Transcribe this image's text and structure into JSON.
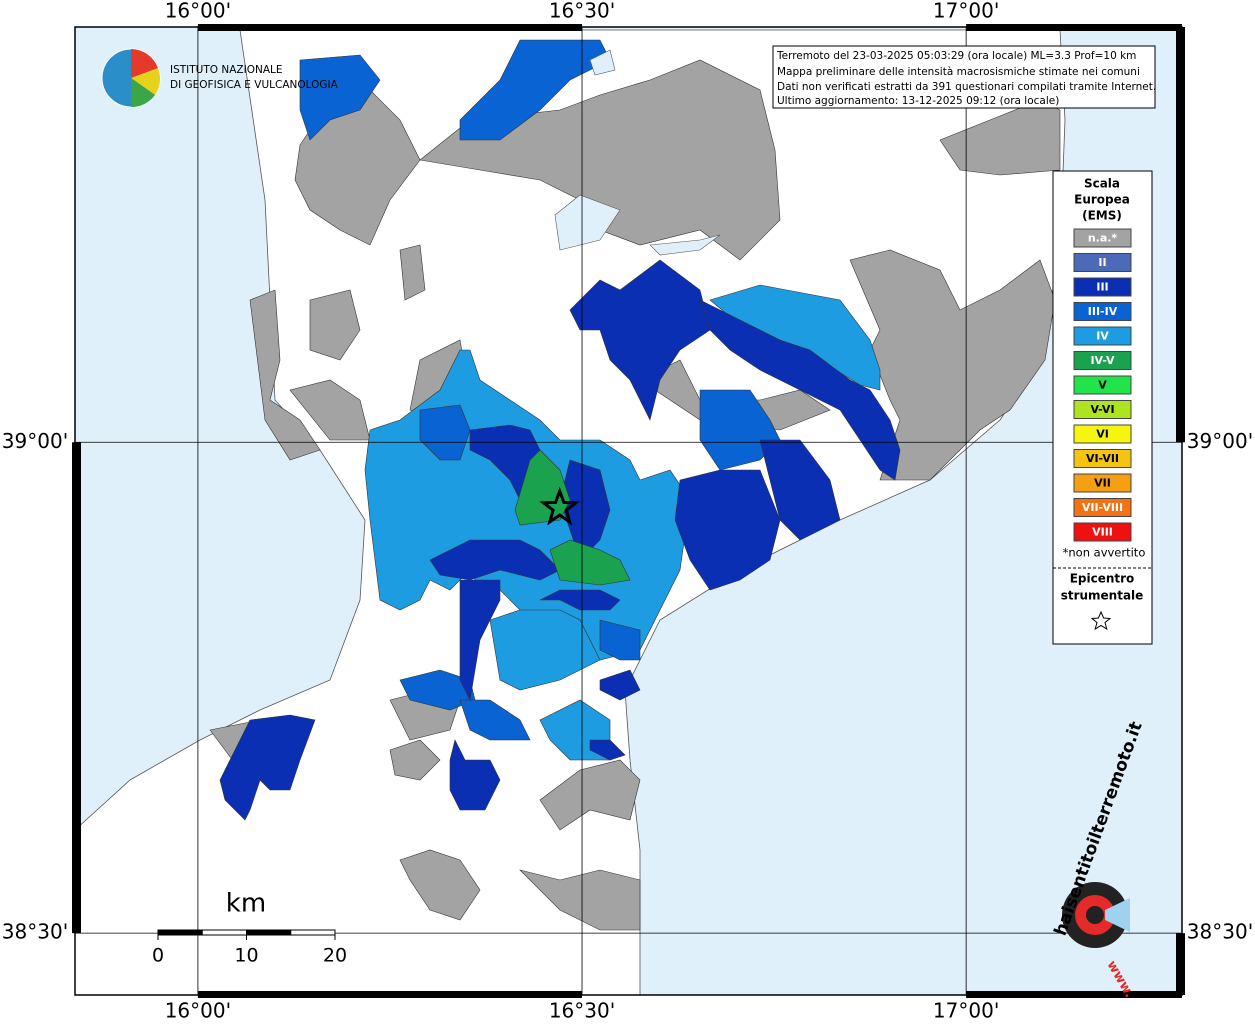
{
  "map": {
    "xlim": [
      15.84,
      17.281
    ],
    "ylim": [
      38.437,
      39.423
    ],
    "xticks": [
      {
        "value": 16,
        "label": "16°00'"
      },
      {
        "value": 16.5,
        "label": "16°30'"
      },
      {
        "value": 17,
        "label": "17°00'"
      }
    ],
    "yticks": [
      {
        "value": 38.5,
        "label": "38°30'"
      },
      {
        "value": 39,
        "label": "39°00'"
      }
    ]
  },
  "info_box": {
    "lines": [
      "Terremoto del 23-03-2025 05:03:29 (ora locale) ML=3.3 Prof=10 km",
      "Mappa preliminare delle intensità macrosismiche stimate nei comuni",
      "Dati non verificati estratti da 391 questionari compilati tramite Internet.",
      "Ultimo aggiornamento: 13-12-2025 09:12 (ora locale)"
    ]
  },
  "logo": {
    "lines": [
      "ISTITUTO NAZIONALE",
      "DI GEOFISICA E VULCANOLOGIA"
    ]
  },
  "legend": {
    "title_lines": [
      "Scala",
      "Europea",
      "(EMS)"
    ],
    "items": [
      {
        "label": "n.a.*",
        "color": "#a3a3a3"
      },
      {
        "label": "II",
        "color": "#4c6ab8"
      },
      {
        "label": "III",
        "color": "#0b2fb2"
      },
      {
        "label": "III-IV",
        "color": "#0a63d2"
      },
      {
        "label": "IV",
        "color": "#1e9ce2"
      },
      {
        "label": "IV-V",
        "color": "#1aa24e"
      },
      {
        "label": "V",
        "color": "#22e44a"
      },
      {
        "label": "V-VI",
        "color": "#aee31f"
      },
      {
        "label": "VI",
        "color": "#f5f510"
      },
      {
        "label": "VI-VII",
        "color": "#f5c412"
      },
      {
        "label": "VII",
        "color": "#f5a012"
      },
      {
        "label": "VII-VIII",
        "color": "#f57212"
      },
      {
        "label": "VIII",
        "color": "#ef1010"
      }
    ],
    "note": "*non avvertito",
    "epicenter_lines": [
      "Epicentro",
      "strumentale"
    ]
  },
  "epicenter": {
    "lon": 16.471,
    "lat": 38.933
  },
  "scale_bar": {
    "unit": "km",
    "ticks": [
      0,
      10,
      20
    ]
  },
  "watermark": {
    "text": "haisentitoilterremoto.it",
    "prefix": "www."
  }
}
